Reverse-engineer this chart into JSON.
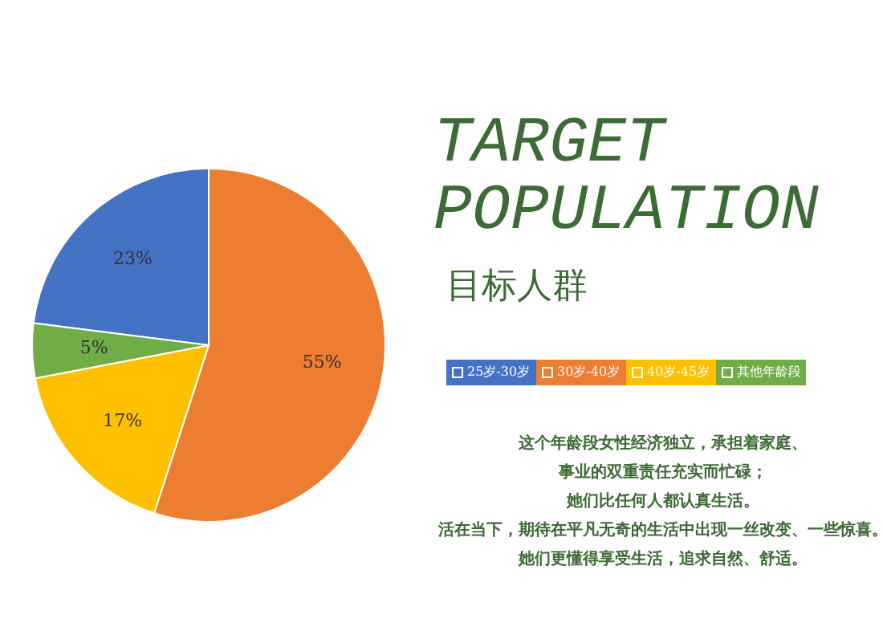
{
  "chart_data": {
    "type": "pie",
    "title": "TARGET\nPOPULATION",
    "subtitle": "目标人群",
    "categories": [
      "25岁-30岁",
      "30岁-40岁",
      "40岁-45岁",
      "其他年龄段"
    ],
    "values": [
      23,
      55,
      17,
      5
    ],
    "colors": [
      "#4472c4",
      "#ed7d31",
      "#ffc000",
      "#70ad47"
    ],
    "value_labels": [
      "23%",
      "55%",
      "17%",
      "5%"
    ],
    "legend": "right",
    "annotations": [
      "这个年龄段女性经济独立，承担着家庭、",
      "事业的双重责任充实而忙碌；",
      "她们比任何人都认真生活。",
      "活在当下，期待在平凡无奇的生活中出现一丝改变、一些惊喜。",
      "她们更懂得享受生活，追求自然、舒适。"
    ]
  }
}
